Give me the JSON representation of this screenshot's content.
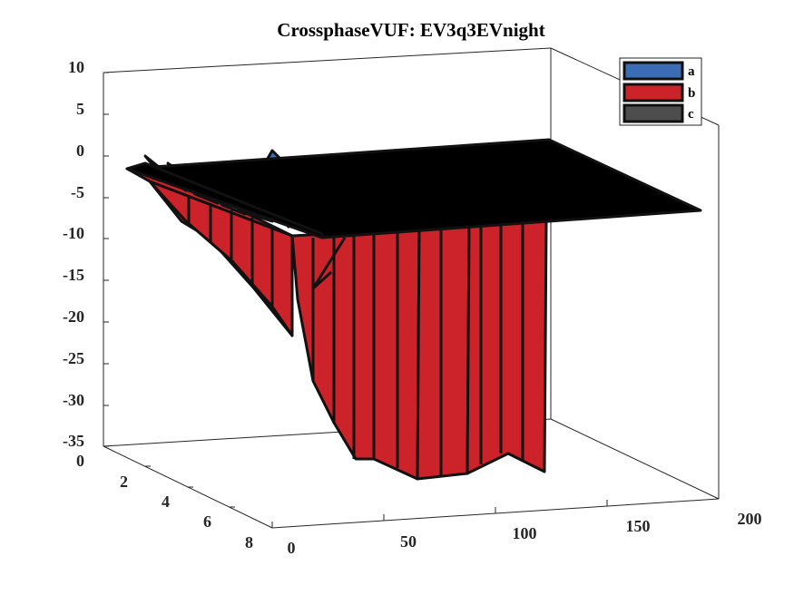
{
  "chart_data": {
    "type": "area",
    "title": "CrossphaseVUF: EV3q3EVnight",
    "xlabel": "",
    "ylabel": "",
    "zlabel": "",
    "xlim": [
      0,
      200
    ],
    "ylim": [
      0,
      8
    ],
    "zlim": [
      -35,
      10
    ],
    "xticks": [
      "0",
      "50",
      "100",
      "150",
      "200"
    ],
    "yticks": [
      "0",
      "2",
      "4",
      "6",
      "8"
    ],
    "zticks": [
      "10",
      "5",
      "0",
      "-5",
      "-10",
      "-15",
      "-20",
      "-25",
      "-30",
      "-35"
    ],
    "grid": false,
    "legend_position": "top-right",
    "series": [
      {
        "name": "a",
        "color": "#3a6db5"
      },
      {
        "name": "b",
        "color": "#cc2229"
      },
      {
        "name": "c",
        "color": "#4d4d4d"
      }
    ]
  }
}
